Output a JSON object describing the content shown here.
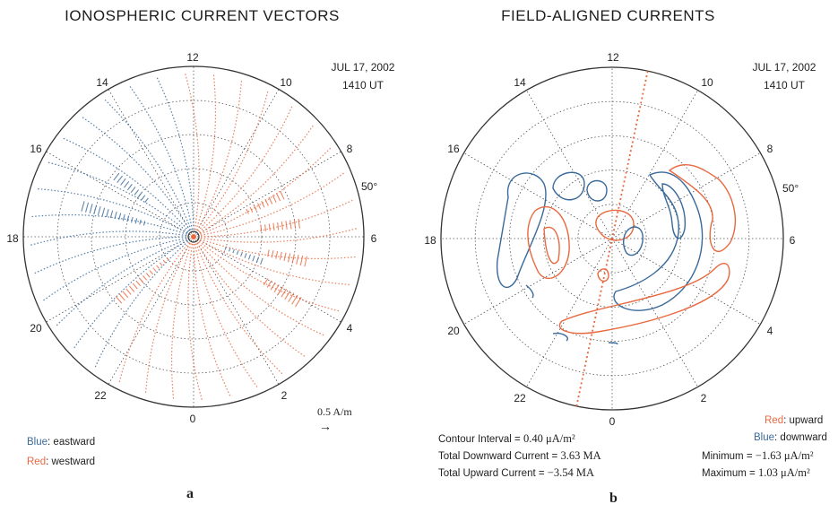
{
  "panel_a": {
    "title": "IONOSPHERIC CURRENT VECTORS",
    "date": "JUL 17, 2002",
    "time": "1410 UT",
    "hours": [
      "12",
      "10",
      "8",
      "6",
      "4",
      "2",
      "0",
      "22",
      "20",
      "18",
      "16",
      "14"
    ],
    "latitude_label": "50°",
    "scale_value": "0.5 A/m",
    "scale_arrow": "→",
    "legend": {
      "blue_label": "Blue",
      "blue_text": ": eastward",
      "red_label": "Red",
      "red_text": ": westward"
    },
    "caption": "a"
  },
  "panel_b": {
    "title": "FIELD-ALIGNED CURRENTS",
    "date": "JUL 17, 2002",
    "time": "1410 UT",
    "hours": [
      "12",
      "10",
      "8",
      "6",
      "4",
      "2",
      "0",
      "22",
      "20",
      "18",
      "16",
      "14"
    ],
    "latitude_label": "50°",
    "stats": {
      "contour_label": "Contour Interval =",
      "contour_value": "0.40",
      "contour_unit": "μA/m²",
      "downward_label": "Total Downward Current =",
      "downward_value": "3.63 MA",
      "upward_label": "Total Upward Current =",
      "upward_value": "−3.54 MA",
      "minimum_label": "Minimum =",
      "minimum_value": "−1.63",
      "minimum_unit": "μA/m²",
      "maximum_label": "Maximum =",
      "maximum_value": "1.03",
      "maximum_unit": "μA/m²"
    },
    "legend": {
      "red_label": "Red",
      "red_text": ": upward",
      "blue_label": "Blue",
      "blue_text": ": downward"
    },
    "caption": "b"
  },
  "colors": {
    "eastward_downward": "#3a6a9a",
    "westward_upward": "#e8693f",
    "grid": "#555555"
  }
}
